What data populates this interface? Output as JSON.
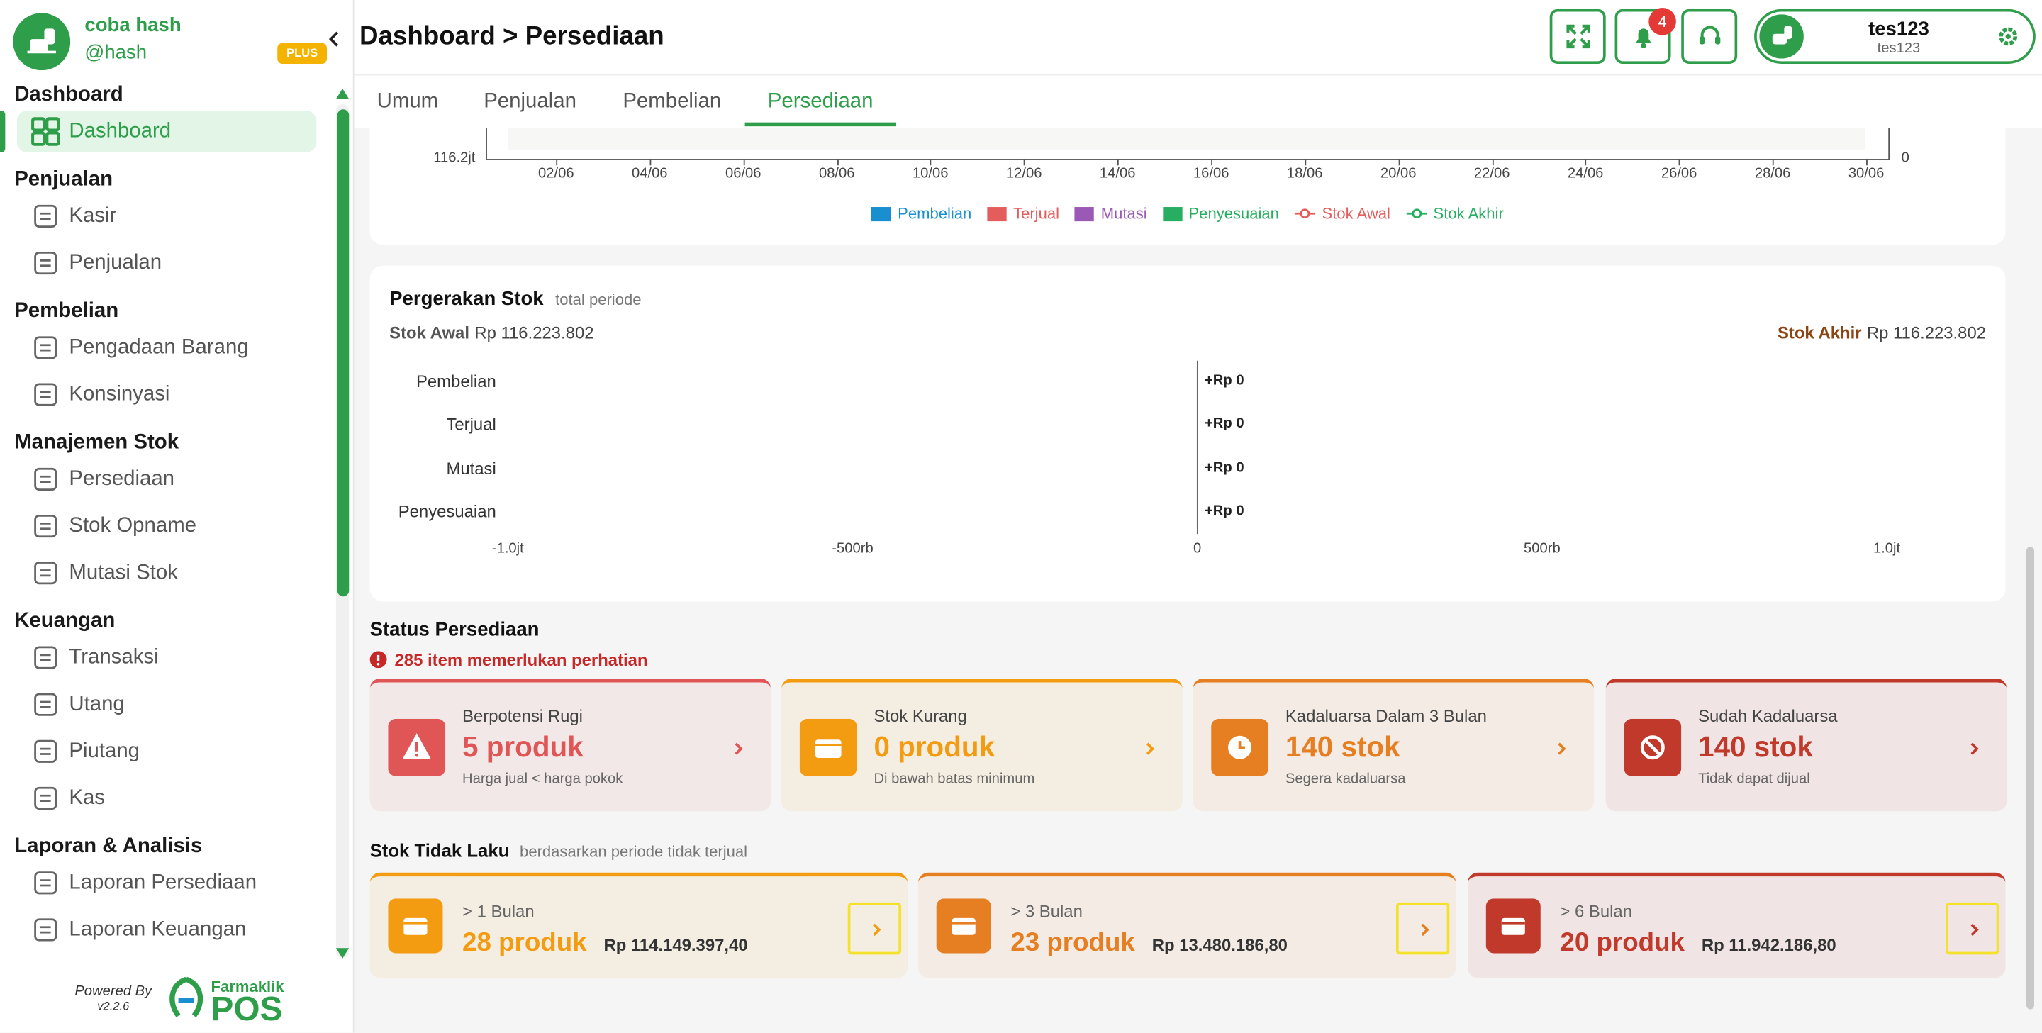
{
  "sidebar": {
    "store_name": "coba hash",
    "handle": "@hash",
    "badge": "PLUS",
    "sections": [
      {
        "title": "Dashboard",
        "items": [
          "Dashboard"
        ]
      },
      {
        "title": "Penjualan",
        "items": [
          "Kasir",
          "Penjualan"
        ]
      },
      {
        "title": "Pembelian",
        "items": [
          "Pengadaan Barang",
          "Konsinyasi"
        ]
      },
      {
        "title": "Manajemen Stok",
        "items": [
          "Persediaan",
          "Stok Opname",
          "Mutasi Stok"
        ]
      },
      {
        "title": "Keuangan",
        "items": [
          "Transaksi",
          "Utang",
          "Piutang",
          "Kas"
        ]
      },
      {
        "title": "Laporan & Analisis",
        "items": [
          "Laporan Persediaan",
          "Laporan Keuangan"
        ]
      }
    ],
    "powered_by": "Powered By",
    "version": "v2.2.6",
    "brand": "Farmaklik",
    "brand_product": "POS"
  },
  "header": {
    "title": "Dashboard > Persediaan",
    "notifications": "4",
    "user_name": "tes123",
    "user_id": "tes123"
  },
  "tabs": [
    "Umum",
    "Penjualan",
    "Pembelian",
    "Persediaan"
  ],
  "chart": {
    "y_label": "116.2jt",
    "y2_label": "0",
    "x_ticks": [
      "02/06",
      "04/06",
      "06/06",
      "08/06",
      "10/06",
      "12/06",
      "14/06",
      "16/06",
      "18/06",
      "20/06",
      "22/06",
      "24/06",
      "26/06",
      "28/06",
      "30/06"
    ],
    "legend": [
      {
        "name": "Pembelian",
        "color": "#1a8fd0",
        "kind": "bar"
      },
      {
        "name": "Terjual",
        "color": "#e35d5d",
        "kind": "bar"
      },
      {
        "name": "Mutasi",
        "color": "#9b59b6",
        "kind": "bar"
      },
      {
        "name": "Penyesuaian",
        "color": "#27ae60",
        "kind": "bar"
      },
      {
        "name": "Stok Awal",
        "color": "#e35d5d",
        "kind": "line"
      },
      {
        "name": "Stok Akhir",
        "color": "#27ae60",
        "kind": "line"
      }
    ]
  },
  "movement": {
    "title": "Pergerakan Stok",
    "subtitle": "total periode",
    "start_label": "Stok Awal",
    "start_value": "Rp 116.223.802",
    "end_label": "Stok Akhir",
    "end_value": "Rp 116.223.802",
    "rows": [
      {
        "label": "Pembelian",
        "value": "+Rp 0"
      },
      {
        "label": "Terjual",
        "value": "+Rp 0"
      },
      {
        "label": "Mutasi",
        "value": "+Rp 0"
      },
      {
        "label": "Penyesuaian",
        "value": "+Rp 0"
      }
    ],
    "x_ticks": [
      "-1.0jt",
      "-500rb",
      "0",
      "500rb",
      "1.0jt"
    ]
  },
  "status": {
    "title": "Status Persediaan",
    "alert": "285 item memerlukan perhatian",
    "cards": [
      {
        "label": "Berpotensi Rugi",
        "value": "5 produk",
        "note": "Harga jual < harga pokok",
        "color": "#e05555"
      },
      {
        "label": "Stok Kurang",
        "value": "0 produk",
        "note": "Di bawah batas minimum",
        "color": "#f39c12"
      },
      {
        "label": "Kadaluarsa Dalam 3 Bulan",
        "value": "140 stok",
        "note": "Segera kadaluarsa",
        "color": "#e67e22"
      },
      {
        "label": "Sudah Kadaluarsa",
        "value": "140 stok",
        "note": "Tidak dapat dijual",
        "color": "#c0392b"
      }
    ]
  },
  "slow_stock": {
    "title": "Stok Tidak Laku",
    "subtitle": "berdasarkan periode tidak terjual",
    "cards": [
      {
        "period": "> 1 Bulan",
        "count": "28 produk",
        "amount": "Rp 114.149.397,40",
        "color": "#f39c12"
      },
      {
        "period": "> 3 Bulan",
        "count": "23 produk",
        "amount": "Rp 13.480.186,80",
        "color": "#e67e22"
      },
      {
        "period": "> 6 Bulan",
        "count": "20 produk",
        "amount": "Rp 11.942.186,80",
        "color": "#c0392b"
      }
    ]
  }
}
